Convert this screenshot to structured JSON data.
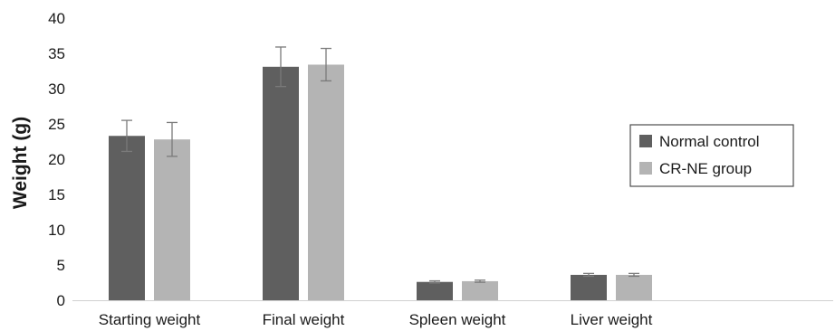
{
  "chart_data": {
    "type": "bar",
    "title": "",
    "xlabel": "",
    "ylabel": "Weight (g)",
    "ylim": [
      0,
      40
    ],
    "yticks": [
      0,
      5,
      10,
      15,
      20,
      25,
      30,
      35,
      40
    ],
    "grid": false,
    "legend_position": "right",
    "categories": [
      "Starting weight",
      "Final weight",
      "Spleen weight",
      "Liver weight"
    ],
    "series": [
      {
        "name": "Normal control",
        "color": "#5f5f5f",
        "values": [
          23.3,
          33.1,
          2.6,
          3.6
        ],
        "errors": [
          2.2,
          2.8,
          0.15,
          0.2
        ]
      },
      {
        "name": "CR-NE group",
        "color": "#b4b4b4",
        "values": [
          22.8,
          33.4,
          2.7,
          3.6
        ],
        "errors": [
          2.4,
          2.3,
          0.15,
          0.2
        ]
      }
    ]
  }
}
